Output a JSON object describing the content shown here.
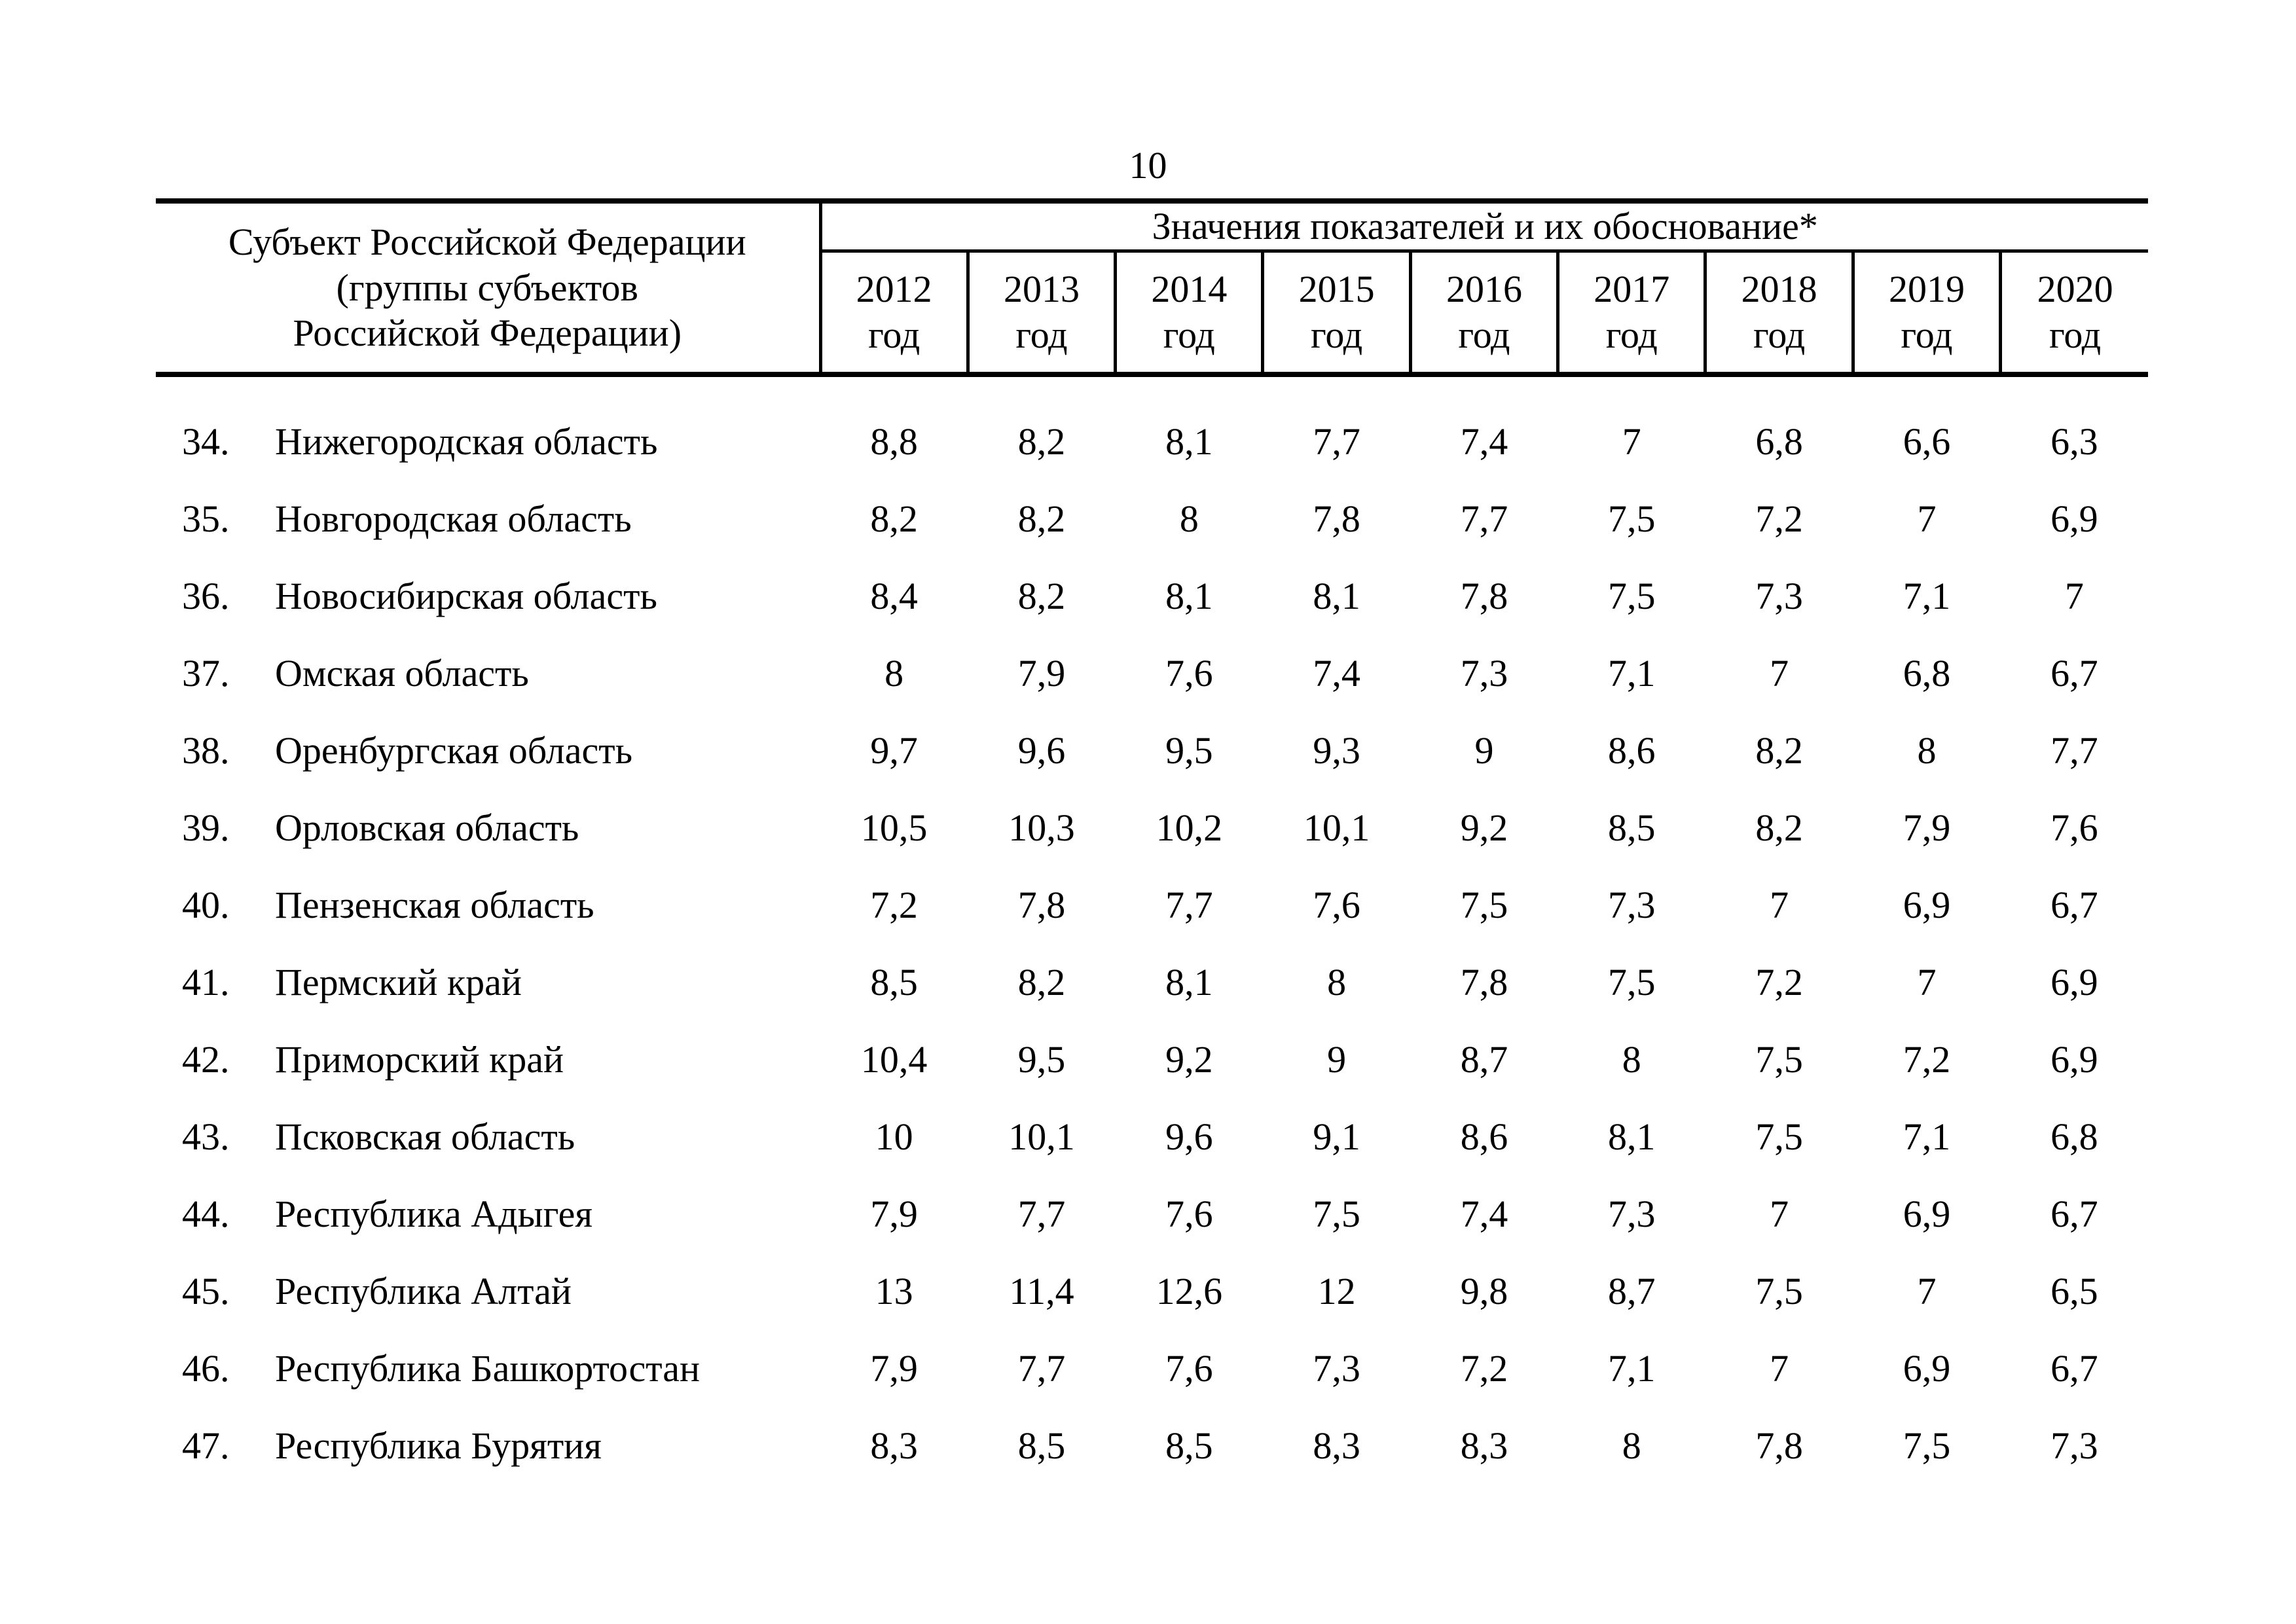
{
  "page": {
    "number": "10"
  },
  "colors": {
    "ink": "#000000",
    "paper": "#ffffff"
  },
  "table": {
    "subject_header_lines": [
      "Субъект Российской Федерации",
      "(группы субъектов",
      "Российской Федерации)"
    ],
    "values_header": "Значения показателей и их обоснование*",
    "year_suffix": "год",
    "years": [
      "2012",
      "2013",
      "2014",
      "2015",
      "2016",
      "2017",
      "2018",
      "2019",
      "2020"
    ],
    "rows": [
      {
        "num": "34.",
        "name": "Нижегородская область",
        "values": [
          "8,8",
          "8,2",
          "8,1",
          "7,7",
          "7,4",
          "7",
          "6,8",
          "6,6",
          "6,3"
        ]
      },
      {
        "num": "35.",
        "name": "Новгородская область",
        "values": [
          "8,2",
          "8,2",
          "8",
          "7,8",
          "7,7",
          "7,5",
          "7,2",
          "7",
          "6,9"
        ]
      },
      {
        "num": "36.",
        "name": "Новосибирская область",
        "values": [
          "8,4",
          "8,2",
          "8,1",
          "8,1",
          "7,8",
          "7,5",
          "7,3",
          "7,1",
          "7"
        ]
      },
      {
        "num": "37.",
        "name": "Омская область",
        "values": [
          "8",
          "7,9",
          "7,6",
          "7,4",
          "7,3",
          "7,1",
          "7",
          "6,8",
          "6,7"
        ]
      },
      {
        "num": "38.",
        "name": "Оренбургская область",
        "values": [
          "9,7",
          "9,6",
          "9,5",
          "9,3",
          "9",
          "8,6",
          "8,2",
          "8",
          "7,7"
        ]
      },
      {
        "num": "39.",
        "name": "Орловская область",
        "values": [
          "10,5",
          "10,3",
          "10,2",
          "10,1",
          "9,2",
          "8,5",
          "8,2",
          "7,9",
          "7,6"
        ]
      },
      {
        "num": "40.",
        "name": "Пензенская область",
        "values": [
          "7,2",
          "7,8",
          "7,7",
          "7,6",
          "7,5",
          "7,3",
          "7",
          "6,9",
          "6,7"
        ]
      },
      {
        "num": "41.",
        "name": "Пермский край",
        "values": [
          "8,5",
          "8,2",
          "8,1",
          "8",
          "7,8",
          "7,5",
          "7,2",
          "7",
          "6,9"
        ]
      },
      {
        "num": "42.",
        "name": "Приморский край",
        "values": [
          "10,4",
          "9,5",
          "9,2",
          "9",
          "8,7",
          "8",
          "7,5",
          "7,2",
          "6,9"
        ]
      },
      {
        "num": "43.",
        "name": "Псковская область",
        "values": [
          "10",
          "10,1",
          "9,6",
          "9,1",
          "8,6",
          "8,1",
          "7,5",
          "7,1",
          "6,8"
        ]
      },
      {
        "num": "44.",
        "name": "Республика Адыгея",
        "values": [
          "7,9",
          "7,7",
          "7,6",
          "7,5",
          "7,4",
          "7,3",
          "7",
          "6,9",
          "6,7"
        ]
      },
      {
        "num": "45.",
        "name": "Республика Алтай",
        "values": [
          "13",
          "11,4",
          "12,6",
          "12",
          "9,8",
          "8,7",
          "7,5",
          "7",
          "6,5"
        ]
      },
      {
        "num": "46.",
        "name": "Республика Башкортостан",
        "values": [
          "7,9",
          "7,7",
          "7,6",
          "7,3",
          "7,2",
          "7,1",
          "7",
          "6,9",
          "6,7"
        ]
      },
      {
        "num": "47.",
        "name": "Республика Бурятия",
        "values": [
          "8,3",
          "8,5",
          "8,5",
          "8,3",
          "8,3",
          "8",
          "7,8",
          "7,5",
          "7,3"
        ]
      }
    ]
  }
}
